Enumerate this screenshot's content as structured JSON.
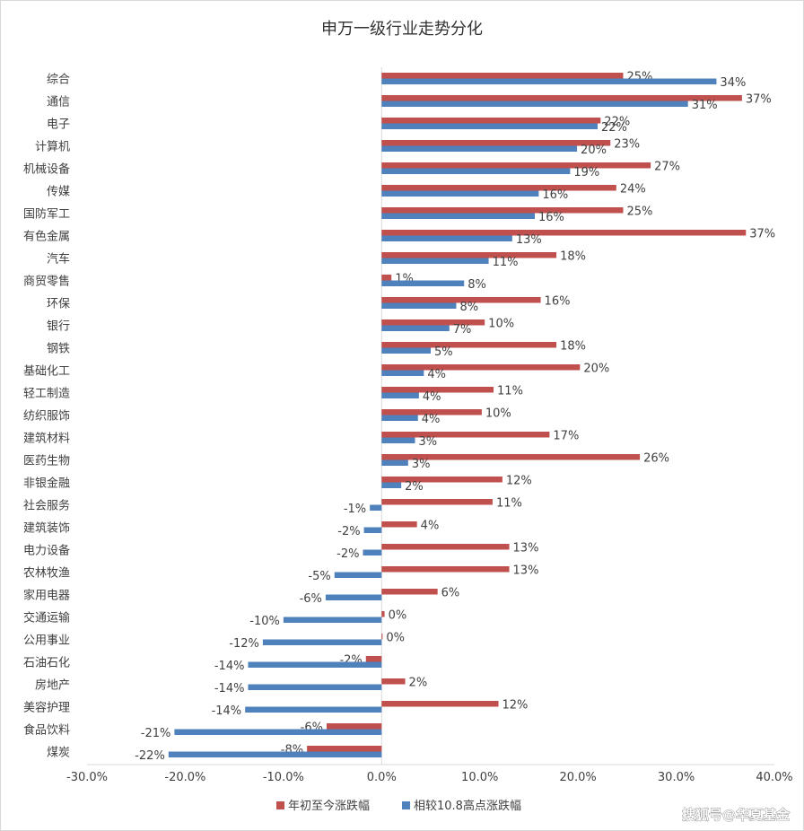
{
  "chart_data": {
    "type": "bar",
    "orientation": "horizontal",
    "title": "申万一级行业走势分化",
    "categories": [
      "综合",
      "通信",
      "电子",
      "计算机",
      "机械设备",
      "传媒",
      "国防军工",
      "有色金属",
      "汽车",
      "商贸零售",
      "环保",
      "银行",
      "钢铁",
      "基础化工",
      "轻工制造",
      "纺织服饰",
      "建筑材料",
      "医药生物",
      "非银金融",
      "社会服务",
      "建筑装饰",
      "电力设备",
      "农林牧渔",
      "家用电器",
      "交通运输",
      "公用事业",
      "石油石化",
      "房地产",
      "美容护理",
      "食品饮料",
      "煤炭"
    ],
    "series": [
      {
        "name": "年初至今涨跌幅",
        "color": "#c0504d",
        "values": [
          24.6,
          36.7,
          22.3,
          23.3,
          27.4,
          23.9,
          24.6,
          37.1,
          17.8,
          1.0,
          16.2,
          10.5,
          17.8,
          20.2,
          11.4,
          10.2,
          17.1,
          26.3,
          12.3,
          11.3,
          3.6,
          13.0,
          13.0,
          5.7,
          0.3,
          0.1,
          -1.6,
          2.4,
          11.9,
          -5.6,
          -7.6
        ],
        "labels": [
          "25%",
          "37%",
          "22%",
          "23%",
          "27%",
          "24%",
          "25%",
          "37%",
          "18%",
          "1%",
          "16%",
          "10%",
          "18%",
          "20%",
          "11%",
          "10%",
          "17%",
          "26%",
          "12%",
          "11%",
          "4%",
          "13%",
          "13%",
          "6%",
          "0%",
          "0%",
          "-2%",
          "2%",
          "12%",
          "-6%",
          "-8%"
        ]
      },
      {
        "name": "相较10.8高点涨跌幅",
        "color": "#4f81bd",
        "values": [
          34.1,
          31.2,
          22.0,
          19.9,
          19.2,
          16.0,
          15.6,
          13.3,
          10.9,
          8.4,
          7.6,
          6.9,
          5.0,
          4.3,
          3.8,
          3.7,
          3.4,
          2.7,
          2.0,
          -1.2,
          -1.8,
          -1.9,
          -4.8,
          -5.7,
          -10.0,
          -12.1,
          -13.6,
          -13.6,
          -13.9,
          -21.1,
          -21.7
        ],
        "labels": [
          "34%",
          "31%",
          "22%",
          "20%",
          "19%",
          "16%",
          "16%",
          "13%",
          "11%",
          "8%",
          "8%",
          "7%",
          "5%",
          "4%",
          "4%",
          "4%",
          "3%",
          "3%",
          "2%",
          "-1%",
          "-2%",
          "-2%",
          "-5%",
          "-6%",
          "-10%",
          "-12%",
          "-14%",
          "-14%",
          "-14%",
          "-21%",
          "-22%"
        ]
      }
    ],
    "xlim": [
      -30,
      40
    ],
    "xticks": [
      "-30.0%",
      "-20.0%",
      "-10.0%",
      "0.0%",
      "10.0%",
      "20.0%",
      "30.0%",
      "40.0%"
    ],
    "xtick_values": [
      -30,
      -20,
      -10,
      0,
      10,
      20,
      30,
      40
    ],
    "grid": false,
    "legend_position": "bottom"
  },
  "watermark": "搜狐号@华夏基金"
}
